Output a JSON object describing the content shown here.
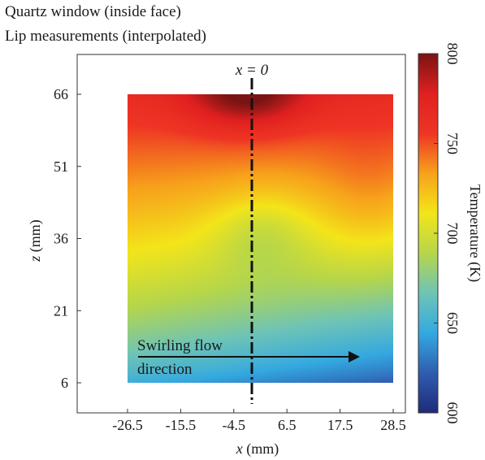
{
  "figure": {
    "title_line1": "Quartz window (inside face)",
    "title_line2": "Lip measurements (interpolated)"
  },
  "chart_data": {
    "type": "heatmap",
    "xlabel_var": "x",
    "xlabel_unit": " (mm)",
    "ylabel_var": "z",
    "ylabel_unit": " (mm)",
    "x_ticks": [
      "-26.5",
      "-15.5",
      "-4.5",
      "6.5",
      "17.5",
      "28.5"
    ],
    "x_tick_values": [
      -26.5,
      -15.5,
      -4.5,
      6.5,
      17.5,
      28.5
    ],
    "y_ticks": [
      "66",
      "51",
      "36",
      "21",
      "6"
    ],
    "y_tick_values": [
      66,
      51,
      36,
      21,
      6
    ],
    "xlim": [
      -26.5,
      28.5
    ],
    "ylim": [
      6,
      66
    ],
    "colorbar": {
      "label": "Temperature (K)",
      "ticks": [
        "800",
        "750",
        "700",
        "650",
        "600"
      ],
      "tick_values": [
        800,
        750,
        700,
        650,
        600
      ],
      "range": [
        600,
        800
      ],
      "colors": [
        "#1f2a7a",
        "#2f5db0",
        "#34a9e0",
        "#6fc4b6",
        "#b6d64a",
        "#f3e51a",
        "#f7a21b",
        "#ee3524",
        "#e02020",
        "#7a1414"
      ]
    },
    "annotations": {
      "centerline_label": "x = 0",
      "flow_line1": "Swirling flow",
      "flow_line2": "direction"
    },
    "estimated_field": {
      "description_free": true,
      "peak_value": 800,
      "peak_location": [
        -6,
        66
      ],
      "min_value": 630,
      "min_location": [
        28.5,
        6
      ]
    }
  }
}
